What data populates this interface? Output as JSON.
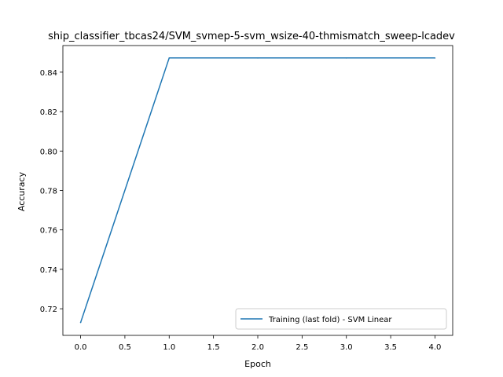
{
  "chart_data": {
    "type": "line",
    "title": "ship_classifier_tbcas24/SVM_svmep-5-svm_wsize-40-thmismatch_sweep-lcadev",
    "xlabel": "Epoch",
    "ylabel": "Accuracy",
    "xlim": [
      -0.2,
      4.2
    ],
    "ylim": [
      0.7065,
      0.8535
    ],
    "xticks": [
      0.0,
      0.5,
      1.0,
      1.5,
      2.0,
      2.5,
      3.0,
      3.5,
      4.0
    ],
    "xtick_labels": [
      "0.0",
      "0.5",
      "1.0",
      "1.5",
      "2.0",
      "2.5",
      "3.0",
      "3.5",
      "4.0"
    ],
    "yticks": [
      0.72,
      0.74,
      0.76,
      0.78,
      0.8,
      0.82,
      0.84
    ],
    "ytick_labels": [
      "0.72",
      "0.74",
      "0.76",
      "0.78",
      "0.80",
      "0.82",
      "0.84"
    ],
    "grid": false,
    "legend_position": "lower-right",
    "series": [
      {
        "name": "Training (last fold) - SVM Linear",
        "color": "#1f77b4",
        "x": [
          0,
          1,
          2,
          3,
          4
        ],
        "y": [
          0.713,
          0.8472,
          0.8472,
          0.8472,
          0.8472
        ]
      }
    ]
  }
}
